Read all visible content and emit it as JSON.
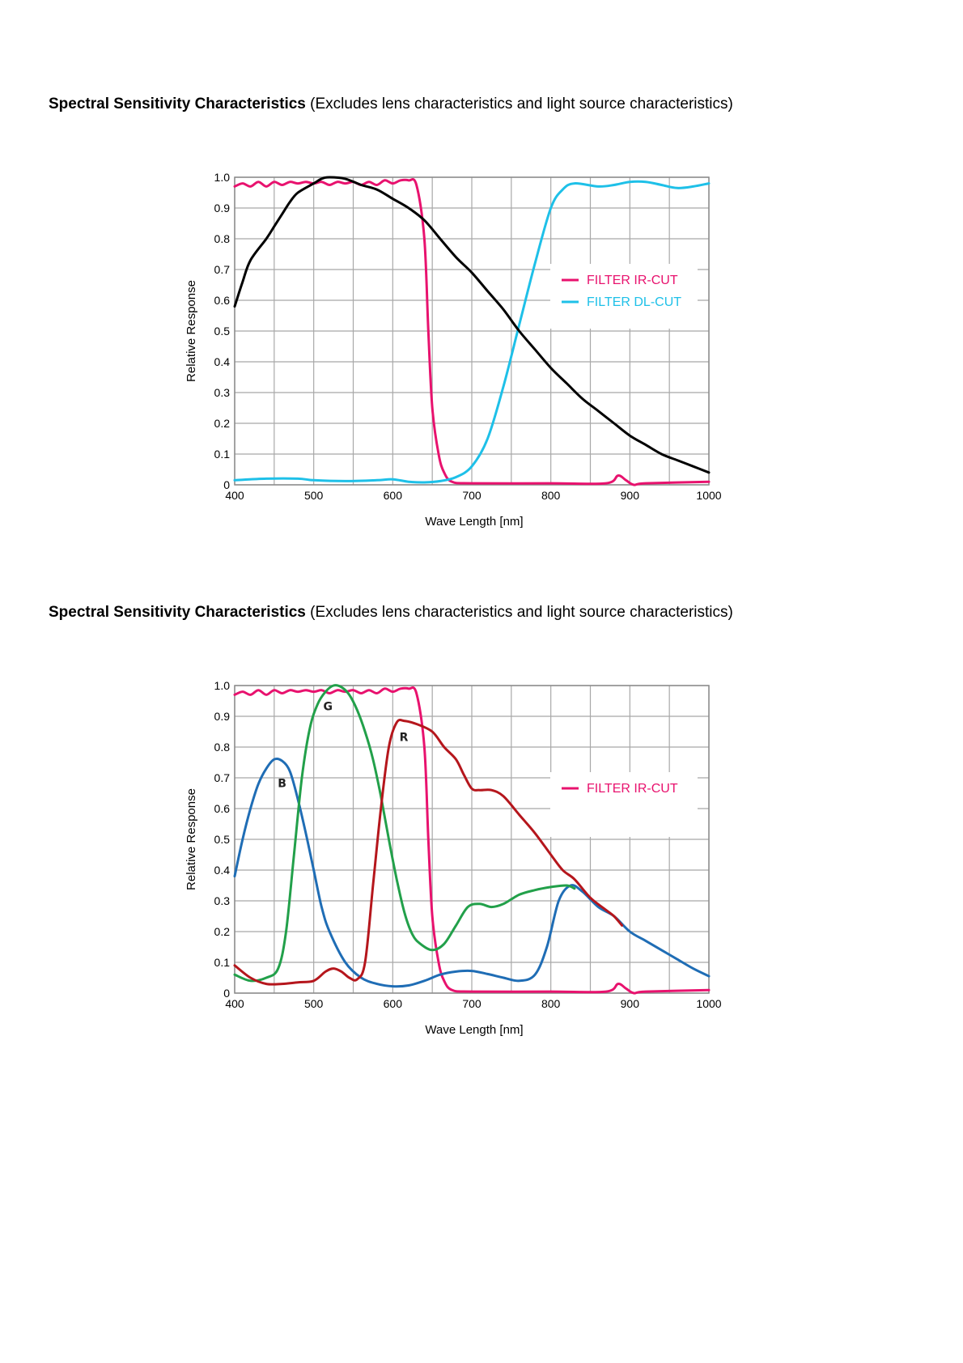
{
  "headings": [
    {
      "bold": "Spectral Sensitivity Characteristics",
      "rest": " (Excludes lens characteristics and light source characteristics)"
    },
    {
      "bold": "Spectral Sensitivity Characteristics",
      "rest": " (Excludes lens characteristics and light source characteristics)"
    }
  ],
  "chart_data": [
    {
      "type": "line",
      "xlabel": "Wave Length [nm]",
      "ylabel": "Relative Response",
      "xlim": [
        400,
        1000
      ],
      "ylim": [
        0,
        1.0
      ],
      "x_ticks": [
        400,
        500,
        600,
        700,
        800,
        900,
        1000
      ],
      "y_ticks": [
        "0",
        "0.1",
        "0.2",
        "0.3",
        "0.4",
        "0.5",
        "0.6",
        "0.7",
        "0.8",
        "0.9",
        "1.0"
      ],
      "grid": true,
      "legend_position": "right",
      "series": [
        {
          "name": "FILTER IR-CUT",
          "color": "#e8126e",
          "legend": true,
          "points": [
            [
              400,
              0.97
            ],
            [
              410,
              0.98
            ],
            [
              420,
              0.97
            ],
            [
              430,
              0.985
            ],
            [
              440,
              0.97
            ],
            [
              450,
              0.985
            ],
            [
              460,
              0.975
            ],
            [
              470,
              0.985
            ],
            [
              480,
              0.98
            ],
            [
              490,
              0.985
            ],
            [
              500,
              0.98
            ],
            [
              510,
              0.985
            ],
            [
              520,
              0.975
            ],
            [
              530,
              0.985
            ],
            [
              540,
              0.98
            ],
            [
              550,
              0.985
            ],
            [
              560,
              0.975
            ],
            [
              570,
              0.985
            ],
            [
              580,
              0.975
            ],
            [
              590,
              0.99
            ],
            [
              600,
              0.98
            ],
            [
              610,
              0.99
            ],
            [
              620,
              0.99
            ],
            [
              630,
              0.975
            ],
            [
              640,
              0.8
            ],
            [
              645,
              0.5
            ],
            [
              650,
              0.25
            ],
            [
              658,
              0.1
            ],
            [
              665,
              0.04
            ],
            [
              675,
              0.01
            ],
            [
              700,
              0.005
            ],
            [
              800,
              0.005
            ],
            [
              870,
              0.005
            ],
            [
              885,
              0.03
            ],
            [
              895,
              0.015
            ],
            [
              905,
              0.0
            ],
            [
              920,
              0.005
            ],
            [
              1000,
              0.01
            ]
          ]
        },
        {
          "name": "FILTER DL-CUT",
          "color": "#1ec0e8",
          "legend": true,
          "points": [
            [
              400,
              0.015
            ],
            [
              440,
              0.02
            ],
            [
              480,
              0.02
            ],
            [
              500,
              0.015
            ],
            [
              540,
              0.012
            ],
            [
              580,
              0.015
            ],
            [
              600,
              0.018
            ],
            [
              620,
              0.01
            ],
            [
              640,
              0.008
            ],
            [
              660,
              0.012
            ],
            [
              680,
              0.025
            ],
            [
              700,
              0.06
            ],
            [
              720,
              0.15
            ],
            [
              740,
              0.32
            ],
            [
              760,
              0.52
            ],
            [
              780,
              0.72
            ],
            [
              800,
              0.9
            ],
            [
              815,
              0.96
            ],
            [
              830,
              0.98
            ],
            [
              860,
              0.97
            ],
            [
              880,
              0.975
            ],
            [
              900,
              0.985
            ],
            [
              920,
              0.985
            ],
            [
              940,
              0.975
            ],
            [
              960,
              0.965
            ],
            [
              980,
              0.97
            ],
            [
              1000,
              0.98
            ]
          ]
        },
        {
          "name": "",
          "color": "#000000",
          "legend": false,
          "points": [
            [
              400,
              0.58
            ],
            [
              410,
              0.66
            ],
            [
              420,
              0.73
            ],
            [
              440,
              0.8
            ],
            [
              450,
              0.84
            ],
            [
              460,
              0.88
            ],
            [
              470,
              0.92
            ],
            [
              480,
              0.95
            ],
            [
              500,
              0.98
            ],
            [
              510,
              0.995
            ],
            [
              520,
              1.0
            ],
            [
              540,
              0.995
            ],
            [
              560,
              0.975
            ],
            [
              580,
              0.96
            ],
            [
              600,
              0.93
            ],
            [
              620,
              0.9
            ],
            [
              640,
              0.86
            ],
            [
              660,
              0.8
            ],
            [
              680,
              0.74
            ],
            [
              700,
              0.69
            ],
            [
              720,
              0.63
            ],
            [
              740,
              0.57
            ],
            [
              760,
              0.5
            ],
            [
              780,
              0.44
            ],
            [
              800,
              0.38
            ],
            [
              820,
              0.33
            ],
            [
              840,
              0.28
            ],
            [
              860,
              0.24
            ],
            [
              880,
              0.2
            ],
            [
              900,
              0.16
            ],
            [
              920,
              0.13
            ],
            [
              940,
              0.1
            ],
            [
              960,
              0.08
            ],
            [
              980,
              0.06
            ],
            [
              1000,
              0.04
            ]
          ]
        }
      ]
    },
    {
      "type": "line",
      "xlabel": "Wave Length [nm]",
      "ylabel": "Relative Response",
      "xlim": [
        400,
        1000
      ],
      "ylim": [
        0,
        1.0
      ],
      "x_ticks": [
        400,
        500,
        600,
        700,
        800,
        900,
        1000
      ],
      "y_ticks": [
        "0",
        "0.1",
        "0.2",
        "0.3",
        "0.4",
        "0.5",
        "0.6",
        "0.7",
        "0.8",
        "0.9",
        "1.0"
      ],
      "grid": true,
      "legend_position": "right",
      "series": [
        {
          "name": "FILTER IR-CUT",
          "color": "#e8126e",
          "legend": true,
          "points": [
            [
              400,
              0.97
            ],
            [
              410,
              0.98
            ],
            [
              420,
              0.97
            ],
            [
              430,
              0.985
            ],
            [
              440,
              0.97
            ],
            [
              450,
              0.985
            ],
            [
              460,
              0.975
            ],
            [
              470,
              0.985
            ],
            [
              480,
              0.98
            ],
            [
              490,
              0.985
            ],
            [
              500,
              0.98
            ],
            [
              510,
              0.985
            ],
            [
              520,
              0.975
            ],
            [
              530,
              0.985
            ],
            [
              540,
              0.98
            ],
            [
              550,
              0.985
            ],
            [
              560,
              0.975
            ],
            [
              570,
              0.985
            ],
            [
              580,
              0.975
            ],
            [
              590,
              0.99
            ],
            [
              600,
              0.98
            ],
            [
              610,
              0.99
            ],
            [
              620,
              0.99
            ],
            [
              630,
              0.975
            ],
            [
              640,
              0.8
            ],
            [
              645,
              0.5
            ],
            [
              650,
              0.25
            ],
            [
              658,
              0.1
            ],
            [
              665,
              0.04
            ],
            [
              675,
              0.01
            ],
            [
              700,
              0.005
            ],
            [
              800,
              0.005
            ],
            [
              870,
              0.005
            ],
            [
              885,
              0.03
            ],
            [
              895,
              0.015
            ],
            [
              905,
              0.0
            ],
            [
              920,
              0.005
            ],
            [
              1000,
              0.01
            ]
          ]
        },
        {
          "name": "B",
          "color": "#1f6db5",
          "legend": false,
          "label_at": [
            460,
            0.67
          ],
          "points": [
            [
              400,
              0.38
            ],
            [
              410,
              0.5
            ],
            [
              420,
              0.6
            ],
            [
              430,
              0.68
            ],
            [
              440,
              0.73
            ],
            [
              450,
              0.76
            ],
            [
              460,
              0.755
            ],
            [
              470,
              0.72
            ],
            [
              480,
              0.63
            ],
            [
              490,
              0.52
            ],
            [
              500,
              0.4
            ],
            [
              510,
              0.28
            ],
            [
              520,
              0.2
            ],
            [
              540,
              0.1
            ],
            [
              560,
              0.05
            ],
            [
              580,
              0.03
            ],
            [
              600,
              0.022
            ],
            [
              620,
              0.025
            ],
            [
              640,
              0.04
            ],
            [
              660,
              0.06
            ],
            [
              680,
              0.07
            ],
            [
              700,
              0.072
            ],
            [
              720,
              0.062
            ],
            [
              740,
              0.05
            ],
            [
              760,
              0.04
            ],
            [
              780,
              0.06
            ],
            [
              795,
              0.15
            ],
            [
              810,
              0.3
            ],
            [
              825,
              0.35
            ],
            [
              840,
              0.33
            ],
            [
              860,
              0.28
            ],
            [
              880,
              0.25
            ],
            [
              900,
              0.2
            ],
            [
              920,
              0.17
            ],
            [
              940,
              0.14
            ],
            [
              960,
              0.11
            ],
            [
              980,
              0.08
            ],
            [
              1000,
              0.055
            ]
          ]
        },
        {
          "name": "G",
          "color": "#22a04a",
          "legend": false,
          "label_at": [
            518,
            0.92
          ],
          "points": [
            [
              400,
              0.06
            ],
            [
              420,
              0.04
            ],
            [
              440,
              0.05
            ],
            [
              455,
              0.08
            ],
            [
              465,
              0.2
            ],
            [
              475,
              0.45
            ],
            [
              485,
              0.7
            ],
            [
              495,
              0.86
            ],
            [
              505,
              0.94
            ],
            [
              515,
              0.98
            ],
            [
              525,
              1.0
            ],
            [
              535,
              0.995
            ],
            [
              545,
              0.97
            ],
            [
              555,
              0.92
            ],
            [
              565,
              0.85
            ],
            [
              575,
              0.76
            ],
            [
              585,
              0.64
            ],
            [
              595,
              0.5
            ],
            [
              605,
              0.37
            ],
            [
              615,
              0.26
            ],
            [
              625,
              0.19
            ],
            [
              635,
              0.16
            ],
            [
              650,
              0.14
            ],
            [
              665,
              0.16
            ],
            [
              680,
              0.22
            ],
            [
              695,
              0.28
            ],
            [
              710,
              0.29
            ],
            [
              725,
              0.28
            ],
            [
              740,
              0.29
            ],
            [
              760,
              0.32
            ],
            [
              780,
              0.335
            ],
            [
              800,
              0.345
            ],
            [
              820,
              0.35
            ],
            [
              830,
              0.34
            ]
          ]
        },
        {
          "name": "R",
          "color": "#b5161c",
          "legend": false,
          "label_at": [
            614,
            0.82
          ],
          "points": [
            [
              400,
              0.09
            ],
            [
              420,
              0.05
            ],
            [
              440,
              0.03
            ],
            [
              460,
              0.03
            ],
            [
              480,
              0.035
            ],
            [
              500,
              0.04
            ],
            [
              515,
              0.07
            ],
            [
              525,
              0.08
            ],
            [
              535,
              0.07
            ],
            [
              545,
              0.05
            ],
            [
              555,
              0.045
            ],
            [
              565,
              0.1
            ],
            [
              575,
              0.35
            ],
            [
              585,
              0.6
            ],
            [
              595,
              0.8
            ],
            [
              605,
              0.88
            ],
            [
              615,
              0.885
            ],
            [
              630,
              0.875
            ],
            [
              650,
              0.85
            ],
            [
              665,
              0.8
            ],
            [
              680,
              0.76
            ],
            [
              690,
              0.71
            ],
            [
              700,
              0.665
            ],
            [
              710,
              0.66
            ],
            [
              725,
              0.66
            ],
            [
              740,
              0.64
            ],
            [
              760,
              0.58
            ],
            [
              780,
              0.52
            ],
            [
              800,
              0.45
            ],
            [
              815,
              0.4
            ],
            [
              830,
              0.37
            ],
            [
              850,
              0.31
            ],
            [
              870,
              0.27
            ],
            [
              880,
              0.25
            ],
            [
              890,
              0.22
            ]
          ]
        }
      ]
    }
  ]
}
